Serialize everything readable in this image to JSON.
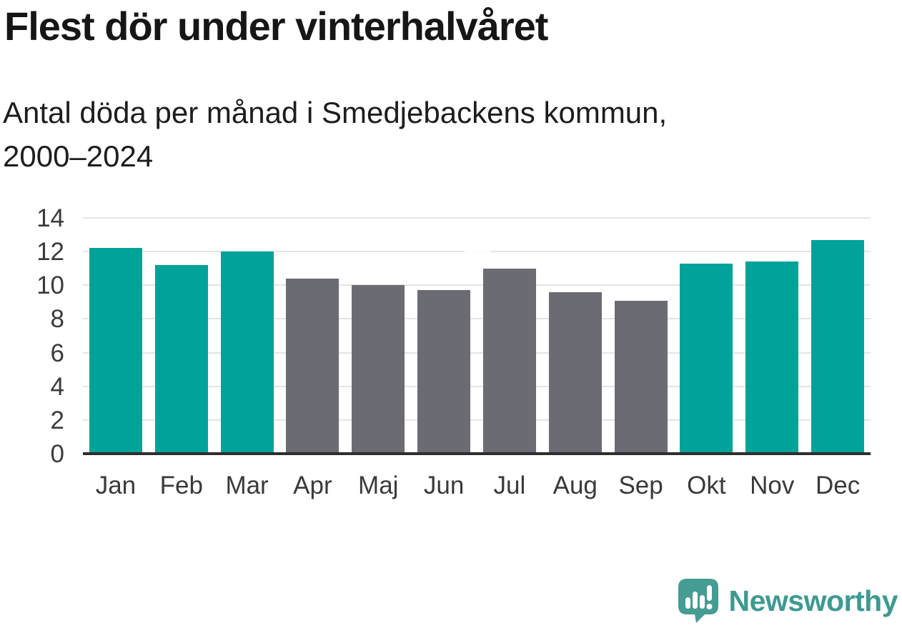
{
  "title": "Flest dör under vinterhalvåret",
  "subtitle": "Antal döda per månad i Smedjebackens kommun, 2000–2024",
  "chart_data": {
    "type": "bar",
    "title": "Flest dör under vinterhalvåret",
    "subtitle": "Antal döda per månad i Smedjebackens kommun, 2000–2024",
    "categories": [
      "Jan",
      "Feb",
      "Mar",
      "Apr",
      "Maj",
      "Jun",
      "Jul",
      "Aug",
      "Sep",
      "Okt",
      "Nov",
      "Dec"
    ],
    "values": [
      12.2,
      11.2,
      12.0,
      10.4,
      10.0,
      9.7,
      11.0,
      9.6,
      9.1,
      11.3,
      11.4,
      12.7
    ],
    "bar_colors": [
      "teal",
      "teal",
      "teal",
      "gray",
      "gray",
      "gray",
      "gray",
      "gray",
      "gray",
      "teal",
      "teal",
      "teal"
    ],
    "xlabel": "",
    "ylabel": "",
    "ylim": [
      0,
      14
    ],
    "yticks": [
      0,
      2,
      4,
      6,
      8,
      10,
      12,
      14
    ],
    "grid": true,
    "legend": "none",
    "colors": {
      "teal": "#00a299",
      "gray": "#6b6b73",
      "gridline": "#e4e4e4",
      "axis": "#2e2e2e"
    }
  },
  "branding": {
    "logo_text": "Newsworthy",
    "logo_text_color": "#3d9a92",
    "logo_bubble_color": "#459c93",
    "logo_icon": "speech-bubble-bar-chart-icon"
  }
}
